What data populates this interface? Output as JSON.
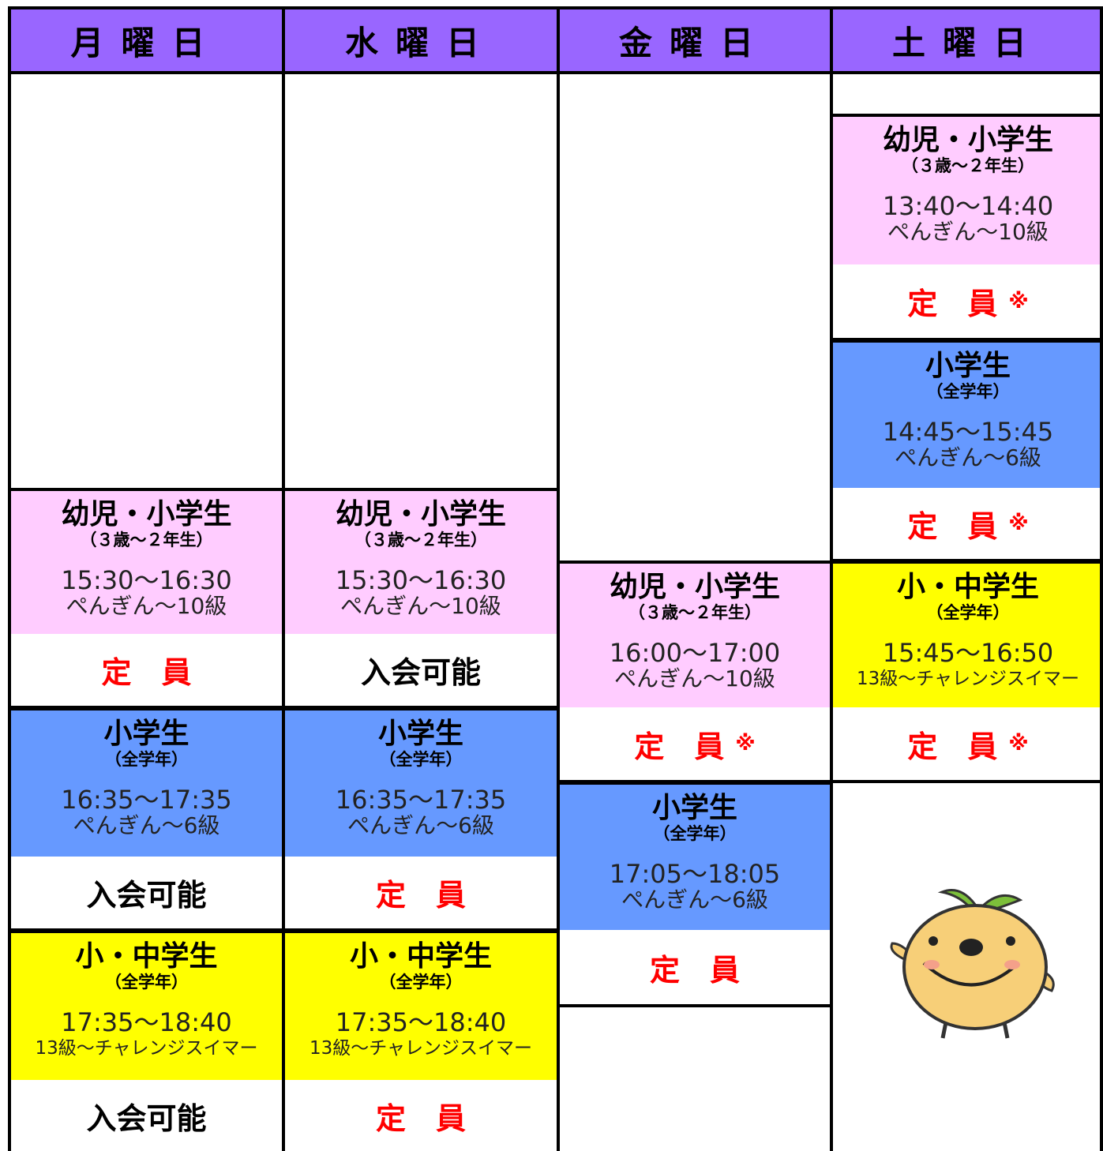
{
  "columns": [
    {
      "header": "月曜日",
      "blocks": [
        {
          "title": "幼児・小学生",
          "subtitle": "（３歳～２年生）",
          "time": "15:30～16:30",
          "level": "ぺんぎん～10級",
          "status": "定　員"
        },
        {
          "title": "小学生",
          "subtitle": "（全学年）",
          "time": "16:35～17:35",
          "level": "ぺんぎん～6級",
          "status": "入会可能"
        },
        {
          "title": "小・中学生",
          "subtitle": "（全学年）",
          "time": "17:35～18:40",
          "level": "13級～チャレンジスイマー",
          "status": "入会可能"
        }
      ]
    },
    {
      "header": "水曜日",
      "blocks": [
        {
          "title": "幼児・小学生",
          "subtitle": "（３歳～２年生）",
          "time": "15:30～16:30",
          "level": "ぺんぎん～10級",
          "status": "入会可能"
        },
        {
          "title": "小学生",
          "subtitle": "（全学年）",
          "time": "16:35～17:35",
          "level": "ぺんぎん～6級",
          "status": "定　員"
        },
        {
          "title": "小・中学生",
          "subtitle": "（全学年）",
          "time": "17:35～18:40",
          "level": "13級～チャレンジスイマー",
          "status": "定　員"
        }
      ]
    },
    {
      "header": "金曜日",
      "blocks": [
        {
          "title": "幼児・小学生",
          "subtitle": "（３歳～２年生）",
          "time": "16:00～17:00",
          "level": "ぺんぎん～10級",
          "status": "定　員",
          "note": "※"
        },
        {
          "title": "小学生",
          "subtitle": "（全学年）",
          "time": "17:05～18:05",
          "level": "ぺんぎん～6級",
          "status": "定　員"
        }
      ]
    },
    {
      "header": "土曜日",
      "blocks": [
        {
          "title": "幼児・小学生",
          "subtitle": "（３歳～２年生）",
          "time": "13:40～14:40",
          "level": "ぺんぎん～10級",
          "status": "定　員",
          "note": "※"
        },
        {
          "title": "小学生",
          "subtitle": "（全学年）",
          "time": "14:45～15:45",
          "level": "ぺんぎん～6級",
          "status": "定　員",
          "note": "※"
        },
        {
          "title": "小・中学生",
          "subtitle": "（全学年）",
          "time": "15:45～16:50",
          "level": "13級～チャレンジスイマー",
          "status": "定　員",
          "note": "※"
        }
      ]
    }
  ]
}
